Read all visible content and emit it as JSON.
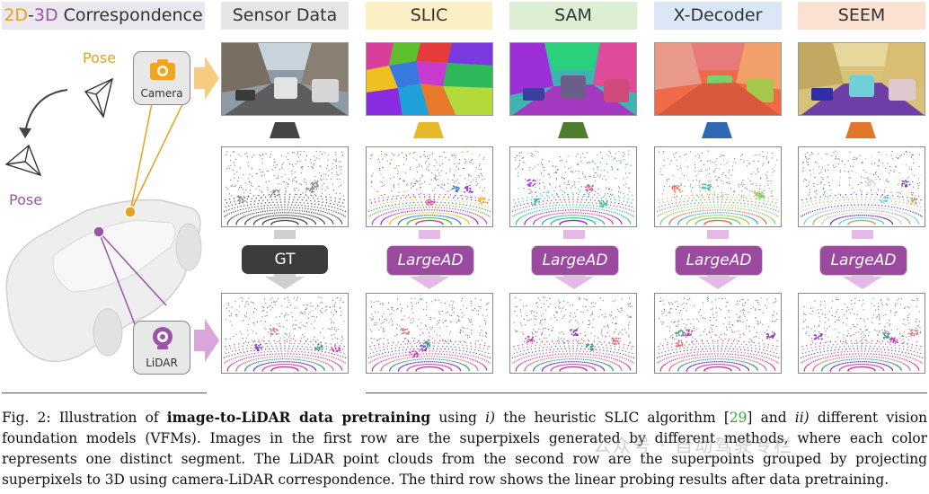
{
  "headers": {
    "correspondence_2d": "2D",
    "correspondence_dash": "-",
    "correspondence_3d": "3D",
    "correspondence_rest": " Correspondence",
    "sensor_data": "Sensor Data",
    "slic": "SLIC",
    "sam": "SAM",
    "xdecoder": "X-Decoder",
    "seem": "SEEM"
  },
  "left_panel": {
    "pose_top": "Pose",
    "pose_left": "Pose",
    "camera_label": "Camera",
    "lidar_label": "LiDAR"
  },
  "buttons": {
    "gt": "GT",
    "largead": "LargeAD"
  },
  "colors": {
    "camera_accent": "#e6a21b",
    "lidar_accent": "#9a55a6",
    "slic_trap": "#e7b82a",
    "sam_trap": "#4e7d2e",
    "xdec_trap": "#2f69b3",
    "seem_trap": "#e2752a",
    "sensor_trap": "#444444",
    "largead_button": "#9b4aa0",
    "gt_button": "#3c3c3c"
  },
  "caption": {
    "prefix": "Fig. 2: Illustration of ",
    "bold": "image-to-LiDAR data pretraining",
    "mid1": " using ",
    "i1": "i)",
    "mid2": " the heuristic SLIC algorithm ",
    "cite_open": "[",
    "cite": "29",
    "cite_close": "]",
    "mid3": " and ",
    "i2": "ii)",
    "rest": " different vision foundation models (VFMs). Images in the first row are the superpixels generated by different methods, where each color represents one distinct segment. The LiDAR point clouds from the second row are the superpoints grouped by projecting superpixels to 3D using camera-LiDAR correspondence. The third row shows the linear probing results after data pretraining."
  },
  "watermark": "公众号 · 自动驾驶专栏"
}
